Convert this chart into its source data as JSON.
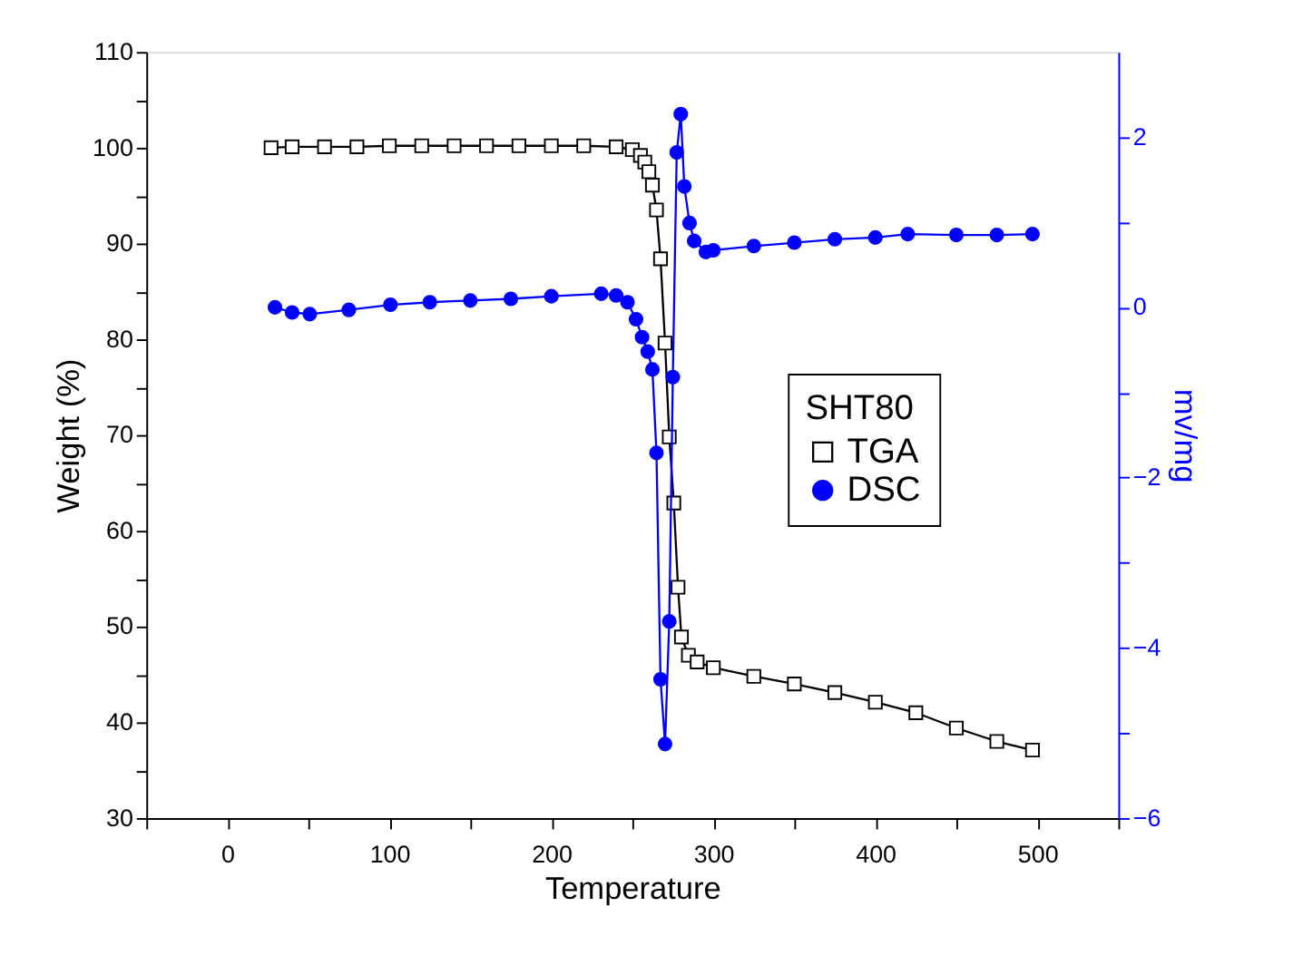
{
  "chart_data": {
    "type": "line",
    "xlabel": "Temperature",
    "ylabel": "Weight (%)",
    "y2label": "mv/mg",
    "legend_title": "SHT80",
    "legend": "right",
    "grid": false,
    "line_style": "solid",
    "xlim": [
      -50,
      550
    ],
    "xticks": [
      {
        "value": -50,
        "label": null
      },
      0,
      {
        "value": 50,
        "label": null
      },
      100,
      {
        "value": 150,
        "label": null
      },
      200,
      {
        "value": 250,
        "label": null
      },
      300,
      {
        "value": 350,
        "label": null
      },
      400,
      {
        "value": 450,
        "label": null
      },
      500,
      {
        "value": 550,
        "label": null
      }
    ],
    "ylim": [
      30,
      110
    ],
    "yticks": [
      30,
      {
        "value": 35,
        "label": null
      },
      40,
      {
        "value": 45,
        "label": null
      },
      50,
      {
        "value": 55,
        "label": null
      },
      60,
      {
        "value": 65,
        "label": null
      },
      70,
      {
        "value": 75,
        "label": null
      },
      80,
      {
        "value": 85,
        "label": null
      },
      90,
      {
        "value": 95,
        "label": null
      },
      100,
      {
        "value": 105,
        "label": null
      },
      110
    ],
    "y2lim": [
      -6,
      3
    ],
    "y2ticks": [
      -6,
      {
        "value": -5,
        "label": null
      },
      -4,
      {
        "value": -3,
        "label": null
      },
      -2,
      {
        "value": -1,
        "label": null
      },
      0,
      {
        "value": 1,
        "label": null
      },
      2
    ],
    "series": [
      {
        "name": "TGA",
        "color": "#000000",
        "marker": "square",
        "x": [
          27,
          40,
          60,
          80,
          100,
          120,
          140,
          160,
          180,
          200,
          220,
          240,
          250,
          255,
          257.7,
          260.2,
          262.4,
          264.9,
          267.4,
          270.2,
          272.8,
          275.6,
          278.2,
          280.3,
          284.6,
          290,
          300,
          325,
          350,
          375,
          400,
          425,
          450,
          475,
          497
        ],
        "values": [
          100,
          100.1,
          100.1,
          100.1,
          100.2,
          100.2,
          100.2,
          100.2,
          100.2,
          100.2,
          100.2,
          100.1,
          99.8,
          99.2,
          98.5,
          97.5,
          96.1,
          93.5,
          88.4,
          79.6,
          69.8,
          62.9,
          54.1,
          48.9,
          47,
          46.3,
          45.7,
          44.8,
          44,
          43.1,
          42.1,
          41,
          39.4,
          38,
          37.1
        ]
      },
      {
        "name": "DSC",
        "color": "#0000ff",
        "marker": "circle",
        "axis": "y2",
        "x": [
          29.4,
          40,
          50.9,
          75,
          100.7,
          125,
          150,
          175,
          200,
          230.8,
          240,
          247,
          252.3,
          256,
          259.5,
          262.4,
          264.9,
          267.4,
          270.2,
          272.8,
          275,
          277.4,
          279.9,
          282.1,
          285.3,
          288.2,
          295.4,
          300,
          325,
          350,
          375,
          400,
          420,
          450,
          475,
          497
        ],
        "values": [
          0,
          -0.06,
          -0.08,
          -0.03,
          0.03,
          0.06,
          0.08,
          0.1,
          0.13,
          0.16,
          0.14,
          0.06,
          -0.14,
          -0.35,
          -0.52,
          -0.73,
          -1.71,
          -4.37,
          -5.13,
          -3.69,
          -0.82,
          1.82,
          2.27,
          1.42,
          0.99,
          0.78,
          0.65,
          0.67,
          0.72,
          0.76,
          0.8,
          0.82,
          0.86,
          0.85,
          0.85,
          0.86
        ]
      }
    ]
  }
}
